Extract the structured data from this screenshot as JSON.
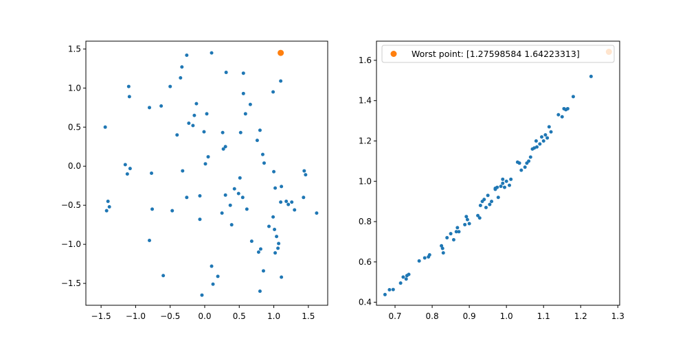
{
  "chart_data": [
    {
      "type": "scatter",
      "title": "",
      "xlabel": "",
      "ylabel": "",
      "xlim": [
        -1.72,
        1.78
      ],
      "ylim": [
        -1.78,
        1.6
      ],
      "xticks": [
        -1.5,
        -1.0,
        -0.5,
        0.0,
        0.5,
        1.0,
        1.5
      ],
      "yticks": [
        -1.5,
        -1.0,
        -0.5,
        0.0,
        0.5,
        1.0,
        1.5
      ],
      "grid": false,
      "series": [
        {
          "color": "#1f77b4",
          "points": [
            [
              -1.44,
              0.5
            ],
            [
              -1.42,
              -0.57
            ],
            [
              -1.4,
              -0.45
            ],
            [
              -1.38,
              -0.52
            ],
            [
              -1.15,
              0.02
            ],
            [
              -1.12,
              -0.1
            ],
            [
              -1.1,
              1.02
            ],
            [
              -1.09,
              0.89
            ],
            [
              -1.08,
              -0.03
            ],
            [
              -0.8,
              0.75
            ],
            [
              -0.8,
              -0.95
            ],
            [
              -0.77,
              -0.09
            ],
            [
              -0.76,
              -0.55
            ],
            [
              -0.63,
              0.77
            ],
            [
              -0.6,
              -1.4
            ],
            [
              -0.5,
              1.02
            ],
            [
              -0.47,
              -0.57
            ],
            [
              -0.4,
              0.4
            ],
            [
              -0.35,
              1.13
            ],
            [
              -0.33,
              1.27
            ],
            [
              -0.32,
              -0.06
            ],
            [
              -0.26,
              1.42
            ],
            [
              -0.26,
              -0.4
            ],
            [
              -0.23,
              0.55
            ],
            [
              -0.17,
              0.52
            ],
            [
              -0.15,
              0.65
            ],
            [
              -0.12,
              0.8
            ],
            [
              -0.07,
              -0.38
            ],
            [
              -0.07,
              -0.68
            ],
            [
              -0.04,
              -1.65
            ],
            [
              -0.01,
              0.44
            ],
            [
              0.01,
              0.03
            ],
            [
              0.03,
              0.67
            ],
            [
              0.05,
              0.12
            ],
            [
              0.1,
              1.45
            ],
            [
              0.1,
              -1.28
            ],
            [
              0.12,
              -1.51
            ],
            [
              0.19,
              -1.41
            ],
            [
              0.25,
              -0.6
            ],
            [
              0.26,
              0.43
            ],
            [
              0.27,
              0.22
            ],
            [
              0.3,
              0.25
            ],
            [
              0.3,
              -0.37
            ],
            [
              0.31,
              1.2
            ],
            [
              0.37,
              -0.5
            ],
            [
              0.39,
              -0.75
            ],
            [
              0.43,
              -0.29
            ],
            [
              0.49,
              -0.35
            ],
            [
              0.51,
              -0.15
            ],
            [
              0.52,
              0.43
            ],
            [
              0.55,
              -0.4
            ],
            [
              0.56,
              0.93
            ],
            [
              0.56,
              1.19
            ],
            [
              0.59,
              0.67
            ],
            [
              0.61,
              -0.55
            ],
            [
              0.66,
              0.79
            ],
            [
              0.68,
              -0.96
            ],
            [
              0.76,
              0.33
            ],
            [
              0.78,
              -1.1
            ],
            [
              0.8,
              0.46
            ],
            [
              0.8,
              -1.6
            ],
            [
              0.81,
              -1.06
            ],
            [
              0.84,
              0.15
            ],
            [
              0.85,
              -1.34
            ],
            [
              0.86,
              0.04
            ],
            [
              0.93,
              -0.77
            ],
            [
              0.99,
              0.95
            ],
            [
              0.99,
              -0.65
            ],
            [
              1.01,
              -0.81
            ],
            [
              1.02,
              -0.28
            ],
            [
              1.02,
              -1.11
            ],
            [
              1.04,
              -0.9
            ],
            [
              1.06,
              -1.05
            ],
            [
              1.07,
              -0.99
            ],
            [
              1.1,
              -0.46
            ],
            [
              1.1,
              1.09
            ],
            [
              1.11,
              -0.26
            ],
            [
              1.11,
              -1.42
            ],
            [
              1.18,
              -0.45
            ],
            [
              1.21,
              -0.49
            ],
            [
              1.26,
              -0.46
            ],
            [
              1.3,
              -0.56
            ],
            [
              1.43,
              -0.4
            ],
            [
              1.44,
              -0.06
            ],
            [
              1.46,
              -0.11
            ],
            [
              1.62,
              -0.6
            ],
            [
              1.0,
              -0.07
            ]
          ]
        },
        {
          "color": "#ff7f0e",
          "points": [
            [
              1.1,
              1.45
            ]
          ]
        }
      ]
    },
    {
      "type": "scatter",
      "title": "",
      "xlabel": "",
      "ylabel": "",
      "xlim": [
        0.65,
        1.305
      ],
      "ylim": [
        0.385,
        1.695
      ],
      "xticks": [
        0.7,
        0.8,
        0.9,
        1.0,
        1.1,
        1.2,
        1.3
      ],
      "yticks": [
        0.4,
        0.6,
        0.8,
        1.0,
        1.2,
        1.4,
        1.6
      ],
      "grid": false,
      "legend": {
        "position": "top-right",
        "entries": [
          {
            "label": "Worst point: [1.27598584 1.64223313]",
            "color": "#ff7f0e"
          }
        ]
      },
      "series": [
        {
          "color": "#1f77b4",
          "points": [
            [
              0.673,
              0.438
            ],
            [
              0.685,
              0.462
            ],
            [
              0.695,
              0.463
            ],
            [
              0.715,
              0.495
            ],
            [
              0.722,
              0.525
            ],
            [
              0.73,
              0.515
            ],
            [
              0.732,
              0.532
            ],
            [
              0.737,
              0.538
            ],
            [
              0.765,
              0.605
            ],
            [
              0.78,
              0.62
            ],
            [
              0.79,
              0.625
            ],
            [
              0.793,
              0.635
            ],
            [
              0.825,
              0.68
            ],
            [
              0.828,
              0.667
            ],
            [
              0.83,
              0.645
            ],
            [
              0.84,
              0.72
            ],
            [
              0.85,
              0.74
            ],
            [
              0.858,
              0.71
            ],
            [
              0.868,
              0.77
            ],
            [
              0.872,
              0.75
            ],
            [
              0.888,
              0.785
            ],
            [
              0.892,
              0.825
            ],
            [
              0.895,
              0.81
            ],
            [
              0.9,
              0.79
            ],
            [
              0.923,
              0.83
            ],
            [
              0.928,
              0.818
            ],
            [
              0.93,
              0.88
            ],
            [
              0.935,
              0.9
            ],
            [
              0.94,
              0.91
            ],
            [
              0.945,
              0.87
            ],
            [
              0.95,
              0.93
            ],
            [
              0.955,
              0.885
            ],
            [
              0.96,
              0.9
            ],
            [
              0.97,
              0.965
            ],
            [
              0.975,
              0.97
            ],
            [
              0.978,
              0.92
            ],
            [
              0.985,
              0.975
            ],
            [
              0.99,
              0.99
            ],
            [
              0.99,
              1.01
            ],
            [
              0.995,
              0.97
            ],
            [
              1.0,
              1.0
            ],
            [
              1.008,
              0.98
            ],
            [
              1.012,
              1.01
            ],
            [
              1.03,
              1.095
            ],
            [
              1.035,
              1.09
            ],
            [
              1.04,
              1.055
            ],
            [
              1.05,
              1.07
            ],
            [
              1.055,
              1.09
            ],
            [
              1.06,
              1.1
            ],
            [
              1.065,
              1.12
            ],
            [
              1.07,
              1.16
            ],
            [
              1.075,
              1.165
            ],
            [
              1.082,
              1.17
            ],
            [
              1.09,
              1.185
            ],
            [
              1.095,
              1.22
            ],
            [
              1.1,
              1.2
            ],
            [
              1.105,
              1.23
            ],
            [
              1.11,
              1.215
            ],
            [
              1.115,
              1.27
            ],
            [
              1.12,
              1.245
            ],
            [
              1.14,
              1.33
            ],
            [
              1.15,
              1.32
            ],
            [
              1.155,
              1.36
            ],
            [
              1.16,
              1.355
            ],
            [
              1.165,
              1.36
            ],
            [
              1.18,
              1.42
            ],
            [
              1.228,
              1.52
            ],
            [
              0.97,
              0.96
            ],
            [
              1.08,
              1.2
            ],
            [
              0.865,
              0.75
            ]
          ]
        },
        {
          "name": "Worst point: [1.27598584 1.64223313]",
          "color": "#ff7f0e",
          "points": [
            [
              1.27598584,
              1.64223313
            ]
          ]
        }
      ]
    }
  ]
}
